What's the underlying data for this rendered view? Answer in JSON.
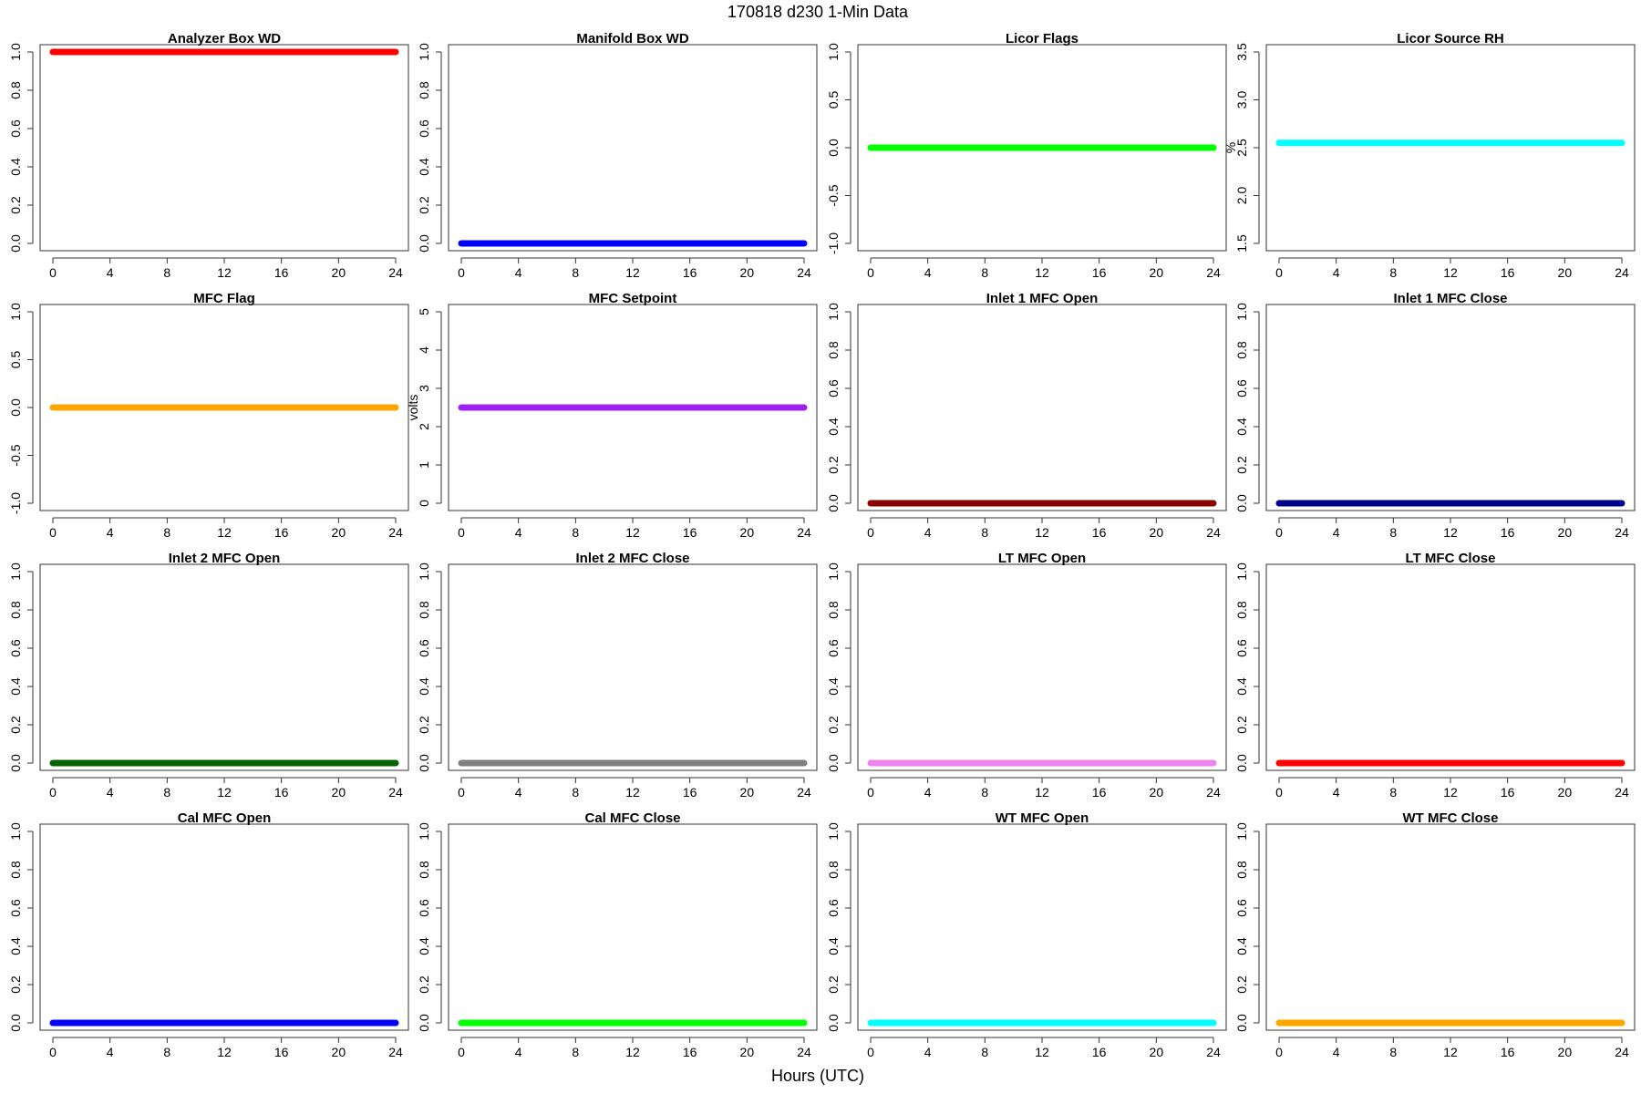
{
  "figure": {
    "title": "170818   d230   1-Min Data",
    "x_axis_label": "Hours (UTC)"
  },
  "chart_data": [
    {
      "type": "scatter",
      "title": "Analyzer Box WD",
      "ylabel": "",
      "xlim": [
        0,
        24
      ],
      "ylim": [
        0,
        1
      ],
      "xticks": [
        0,
        4,
        8,
        12,
        16,
        20,
        24
      ],
      "yticks": [
        "0.0",
        "0.2",
        "0.4",
        "0.6",
        "0.8",
        "1.0"
      ],
      "series": [
        {
          "color": "#ff0000",
          "x": [
            0,
            24
          ],
          "values": [
            1,
            1
          ]
        }
      ]
    },
    {
      "type": "scatter",
      "title": "Manifold Box WD",
      "ylabel": "",
      "xlim": [
        0,
        24
      ],
      "ylim": [
        0,
        1
      ],
      "xticks": [
        0,
        4,
        8,
        12,
        16,
        20,
        24
      ],
      "yticks": [
        "0.0",
        "0.2",
        "0.4",
        "0.6",
        "0.8",
        "1.0"
      ],
      "series": [
        {
          "color": "#0000ff",
          "x": [
            0,
            24
          ],
          "values": [
            0,
            0
          ]
        }
      ]
    },
    {
      "type": "scatter",
      "title": "Licor Flags",
      "ylabel": "",
      "xlim": [
        0,
        24
      ],
      "ylim": [
        -1,
        1
      ],
      "xticks": [
        0,
        4,
        8,
        12,
        16,
        20,
        24
      ],
      "yticks": [
        "-1.0",
        "-0.5",
        "0.0",
        "0.5",
        "1.0"
      ],
      "series": [
        {
          "color": "#00ff00",
          "x": [
            0,
            24
          ],
          "values": [
            0,
            0
          ]
        }
      ]
    },
    {
      "type": "scatter",
      "title": "Licor Source RH",
      "ylabel": "%",
      "xlim": [
        0,
        24
      ],
      "ylim": [
        1.5,
        3.5
      ],
      "xticks": [
        0,
        4,
        8,
        12,
        16,
        20,
        24
      ],
      "yticks": [
        "1.5",
        "2.0",
        "2.5",
        "3.0",
        "3.5"
      ],
      "series": [
        {
          "color": "#00ffff",
          "x": [
            0,
            24
          ],
          "values": [
            2.55,
            2.55
          ]
        }
      ]
    },
    {
      "type": "scatter",
      "title": "MFC Flag",
      "ylabel": "",
      "xlim": [
        0,
        24
      ],
      "ylim": [
        -1,
        1
      ],
      "xticks": [
        0,
        4,
        8,
        12,
        16,
        20,
        24
      ],
      "yticks": [
        "-1.0",
        "-0.5",
        "0.0",
        "0.5",
        "1.0"
      ],
      "series": [
        {
          "color": "#ffa500",
          "x": [
            0,
            24
          ],
          "values": [
            0,
            0
          ]
        }
      ]
    },
    {
      "type": "scatter",
      "title": "MFC Setpoint",
      "ylabel": "volts",
      "xlim": [
        0,
        24
      ],
      "ylim": [
        0,
        5
      ],
      "xticks": [
        0,
        4,
        8,
        12,
        16,
        20,
        24
      ],
      "yticks": [
        "0",
        "1",
        "2",
        "3",
        "4",
        "5"
      ],
      "series": [
        {
          "color": "#a020f0",
          "x": [
            0,
            24
          ],
          "values": [
            2.5,
            2.5
          ]
        }
      ]
    },
    {
      "type": "scatter",
      "title": "Inlet 1 MFC Open",
      "ylabel": "",
      "xlim": [
        0,
        24
      ],
      "ylim": [
        0,
        1
      ],
      "xticks": [
        0,
        4,
        8,
        12,
        16,
        20,
        24
      ],
      "yticks": [
        "0.0",
        "0.2",
        "0.4",
        "0.6",
        "0.8",
        "1.0"
      ],
      "series": [
        {
          "color": "#8b0000",
          "x": [
            0,
            24
          ],
          "values": [
            0,
            0
          ]
        }
      ]
    },
    {
      "type": "scatter",
      "title": "Inlet 1 MFC Close",
      "ylabel": "",
      "xlim": [
        0,
        24
      ],
      "ylim": [
        0,
        1
      ],
      "xticks": [
        0,
        4,
        8,
        12,
        16,
        20,
        24
      ],
      "yticks": [
        "0.0",
        "0.2",
        "0.4",
        "0.6",
        "0.8",
        "1.0"
      ],
      "series": [
        {
          "color": "#00008b",
          "x": [
            0,
            24
          ],
          "values": [
            0,
            0
          ]
        }
      ]
    },
    {
      "type": "scatter",
      "title": "Inlet 2 MFC Open",
      "ylabel": "",
      "xlim": [
        0,
        24
      ],
      "ylim": [
        0,
        1
      ],
      "xticks": [
        0,
        4,
        8,
        12,
        16,
        20,
        24
      ],
      "yticks": [
        "0.0",
        "0.2",
        "0.4",
        "0.6",
        "0.8",
        "1.0"
      ],
      "series": [
        {
          "color": "#006400",
          "x": [
            0,
            24
          ],
          "values": [
            0,
            0
          ]
        }
      ]
    },
    {
      "type": "scatter",
      "title": "Inlet 2 MFC Close",
      "ylabel": "",
      "xlim": [
        0,
        24
      ],
      "ylim": [
        0,
        1
      ],
      "xticks": [
        0,
        4,
        8,
        12,
        16,
        20,
        24
      ],
      "yticks": [
        "0.0",
        "0.2",
        "0.4",
        "0.6",
        "0.8",
        "1.0"
      ],
      "series": [
        {
          "color": "#808080",
          "x": [
            0,
            24
          ],
          "values": [
            0,
            0
          ]
        }
      ]
    },
    {
      "type": "scatter",
      "title": "LT MFC Open",
      "ylabel": "",
      "xlim": [
        0,
        24
      ],
      "ylim": [
        0,
        1
      ],
      "xticks": [
        0,
        4,
        8,
        12,
        16,
        20,
        24
      ],
      "yticks": [
        "0.0",
        "0.2",
        "0.4",
        "0.6",
        "0.8",
        "1.0"
      ],
      "series": [
        {
          "color": "#ee82ee",
          "x": [
            0,
            24
          ],
          "values": [
            0,
            0
          ]
        }
      ]
    },
    {
      "type": "scatter",
      "title": "LT MFC Close",
      "ylabel": "",
      "xlim": [
        0,
        24
      ],
      "ylim": [
        0,
        1
      ],
      "xticks": [
        0,
        4,
        8,
        12,
        16,
        20,
        24
      ],
      "yticks": [
        "0.0",
        "0.2",
        "0.4",
        "0.6",
        "0.8",
        "1.0"
      ],
      "series": [
        {
          "color": "#ff0000",
          "x": [
            0,
            24
          ],
          "values": [
            0,
            0
          ]
        }
      ]
    },
    {
      "type": "scatter",
      "title": "Cal MFC Open",
      "ylabel": "",
      "xlim": [
        0,
        24
      ],
      "ylim": [
        0,
        1
      ],
      "xticks": [
        0,
        4,
        8,
        12,
        16,
        20,
        24
      ],
      "yticks": [
        "0.0",
        "0.2",
        "0.4",
        "0.6",
        "0.8",
        "1.0"
      ],
      "series": [
        {
          "color": "#0000ff",
          "x": [
            0,
            24
          ],
          "values": [
            0,
            0
          ]
        }
      ]
    },
    {
      "type": "scatter",
      "title": "Cal MFC Close",
      "ylabel": "",
      "xlim": [
        0,
        24
      ],
      "ylim": [
        0,
        1
      ],
      "xticks": [
        0,
        4,
        8,
        12,
        16,
        20,
        24
      ],
      "yticks": [
        "0.0",
        "0.2",
        "0.4",
        "0.6",
        "0.8",
        "1.0"
      ],
      "series": [
        {
          "color": "#00ff00",
          "x": [
            0,
            24
          ],
          "values": [
            0,
            0
          ]
        }
      ]
    },
    {
      "type": "scatter",
      "title": "WT MFC Open",
      "ylabel": "",
      "xlim": [
        0,
        24
      ],
      "ylim": [
        0,
        1
      ],
      "xticks": [
        0,
        4,
        8,
        12,
        16,
        20,
        24
      ],
      "yticks": [
        "0.0",
        "0.2",
        "0.4",
        "0.6",
        "0.8",
        "1.0"
      ],
      "series": [
        {
          "color": "#00ffff",
          "x": [
            0,
            24
          ],
          "values": [
            0,
            0
          ]
        }
      ]
    },
    {
      "type": "scatter",
      "title": "WT MFC Close",
      "ylabel": "",
      "xlim": [
        0,
        24
      ],
      "ylim": [
        0,
        1
      ],
      "xticks": [
        0,
        4,
        8,
        12,
        16,
        20,
        24
      ],
      "yticks": [
        "0.0",
        "0.2",
        "0.4",
        "0.6",
        "0.8",
        "1.0"
      ],
      "series": [
        {
          "color": "#ffa500",
          "x": [
            0,
            24
          ],
          "values": [
            0,
            0
          ]
        }
      ]
    }
  ]
}
